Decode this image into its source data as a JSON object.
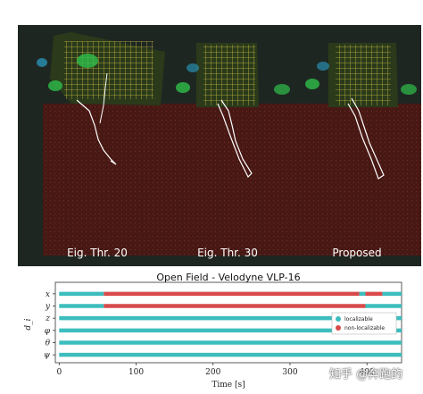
{
  "panels": [
    {
      "label": "Eig. Thr. 20"
    },
    {
      "label": "Eig. Thr. 30"
    },
    {
      "label": "Proposed"
    }
  ],
  "watermark": "知乎 @奔跑的",
  "colors": {
    "localizable": "#3dbdbd",
    "non_localizable": "#d94a4a",
    "background_dark": "#1e2622",
    "ground_red": "#5a1a16",
    "building_yellow": "#d6c43a"
  },
  "chart_data": {
    "type": "timeline",
    "title": "Open Field - Velodyne VLP-16",
    "xlabel": "Time [s]",
    "ylabel": "d_i",
    "xlim": [
      -5,
      445
    ],
    "xticks": [
      0,
      100,
      200,
      300,
      400
    ],
    "rows": [
      "x",
      "y",
      "z",
      "φ",
      "θ",
      "ψ"
    ],
    "legend": [
      {
        "label": "localizable",
        "color": "#3dbdbd"
      },
      {
        "label": "non-localizable",
        "color": "#d94a4a"
      }
    ],
    "legend_position": "right",
    "segments": [
      [
        {
          "start": 0,
          "end": 58,
          "state": "localizable"
        },
        {
          "start": 58,
          "end": 390,
          "state": "non-localizable"
        },
        {
          "start": 390,
          "end": 398,
          "state": "localizable"
        },
        {
          "start": 398,
          "end": 420,
          "state": "non-localizable"
        },
        {
          "start": 420,
          "end": 445,
          "state": "localizable"
        }
      ],
      [
        {
          "start": 0,
          "end": 58,
          "state": "localizable"
        },
        {
          "start": 58,
          "end": 398,
          "state": "non-localizable"
        },
        {
          "start": 398,
          "end": 445,
          "state": "localizable"
        }
      ],
      [
        {
          "start": 0,
          "end": 445,
          "state": "localizable"
        }
      ],
      [
        {
          "start": 0,
          "end": 445,
          "state": "localizable"
        }
      ],
      [
        {
          "start": 0,
          "end": 445,
          "state": "localizable"
        }
      ],
      [
        {
          "start": 0,
          "end": 445,
          "state": "localizable"
        }
      ]
    ]
  }
}
